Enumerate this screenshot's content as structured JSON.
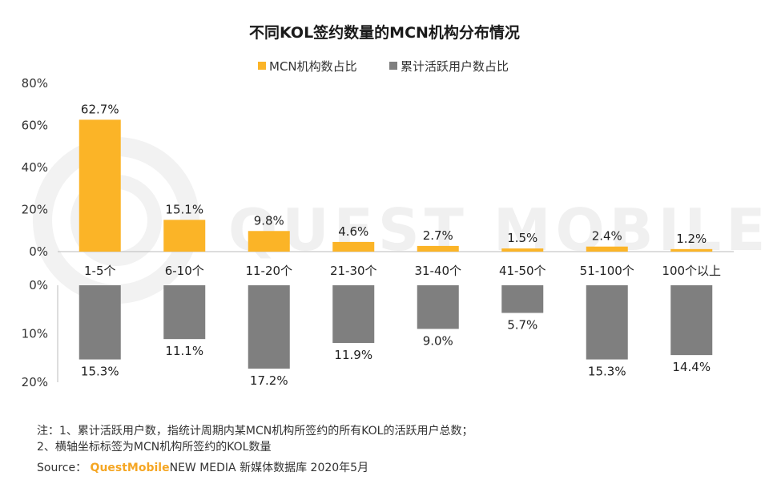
{
  "chart_data": {
    "type": "bar",
    "title": "不同KOL签约数量的MCN机构分布情况",
    "categories": [
      "1-5个",
      "6-10个",
      "11-20个",
      "21-30个",
      "31-40个",
      "41-50个",
      "51-100个",
      "100个以上"
    ],
    "series": [
      {
        "name": "MCN机构数占比",
        "values": [
          62.7,
          15.1,
          9.8,
          4.6,
          2.7,
          1.5,
          2.4,
          1.2
        ],
        "labels": [
          "62.7%",
          "15.1%",
          "9.8%",
          "4.6%",
          "2.7%",
          "1.5%",
          "2.4%",
          "1.2%"
        ],
        "color": "#fbb427",
        "ylim": [
          0,
          80
        ],
        "yticks": [
          "0%",
          "20%",
          "40%",
          "60%",
          "80%"
        ]
      },
      {
        "name": "累计活跃用户数占比",
        "values": [
          15.3,
          11.1,
          17.2,
          11.9,
          9.0,
          5.7,
          15.3,
          14.4
        ],
        "labels": [
          "15.3%",
          "11.1%",
          "17.2%",
          "11.9%",
          "9.0%",
          "5.7%",
          "15.3%",
          "14.4%"
        ],
        "color": "#7f7f7f",
        "ylim": [
          0,
          20
        ],
        "yticks": [
          "0%",
          "10%",
          "20%"
        ]
      }
    ],
    "legend": "top-center",
    "grid": false
  },
  "watermark": "QUEST MOBILE",
  "notes": [
    "注：1、累计活跃用户数，指统计周期内某MCN机构所签约的所有KOL的活跃用户总数；",
    "2、横轴坐标标签为MCN机构所签约的KOL数量"
  ],
  "source": {
    "prefix": "Source： ",
    "brand": "QuestMobile",
    "rest": "NEW MEDIA 新媒体数据库 2020年5月"
  }
}
